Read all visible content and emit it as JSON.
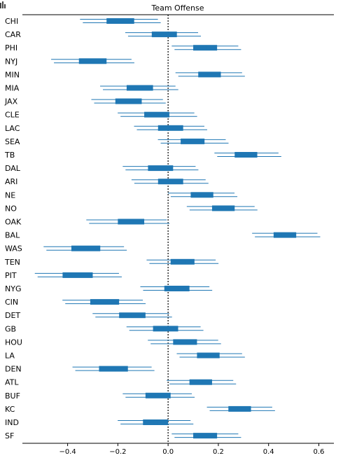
{
  "chart_data": {
    "type": "forest",
    "title": "Team Offense",
    "xlabel": "",
    "ylabel": "",
    "xlim": [
      -0.58,
      0.66
    ],
    "xticks": [
      -0.4,
      -0.2,
      0.0,
      0.2,
      0.4,
      0.6
    ],
    "xtick_labels": [
      "−0.4",
      "−0.2",
      "0.0",
      "0.2",
      "0.4",
      "0.6"
    ],
    "reference_line": 0.0,
    "marker_color": "#1f77b4",
    "rows": [
      {
        "team": "CHI",
        "median": -0.185,
        "iqr": [
          -0.245,
          -0.135
        ],
        "hdi": [
          -0.345,
          -0.035
        ]
      },
      {
        "team": "CAR",
        "median": -0.015,
        "iqr": [
          -0.065,
          0.035
        ],
        "hdi": [
          -0.165,
          0.125
        ]
      },
      {
        "team": "PHI",
        "median": 0.145,
        "iqr": [
          0.1,
          0.195
        ],
        "hdi": [
          0.02,
          0.285
        ]
      },
      {
        "team": "NYJ",
        "median": -0.3,
        "iqr": [
          -0.355,
          -0.245
        ],
        "hdi": [
          -0.46,
          -0.14
        ]
      },
      {
        "team": "MIN",
        "median": 0.165,
        "iqr": [
          0.12,
          0.21
        ],
        "hdi": [
          0.035,
          0.3
        ]
      },
      {
        "team": "MIA",
        "median": -0.11,
        "iqr": [
          -0.165,
          -0.06
        ],
        "hdi": [
          -0.265,
          0.035
        ]
      },
      {
        "team": "JAX",
        "median": -0.16,
        "iqr": [
          -0.21,
          -0.105
        ],
        "hdi": [
          -0.3,
          -0.015
        ]
      },
      {
        "team": "CLE",
        "median": -0.045,
        "iqr": [
          -0.095,
          0.005
        ],
        "hdi": [
          -0.195,
          0.11
        ]
      },
      {
        "team": "LAC",
        "median": 0.01,
        "iqr": [
          -0.04,
          0.06
        ],
        "hdi": [
          -0.13,
          0.15
        ]
      },
      {
        "team": "SEA",
        "median": 0.1,
        "iqr": [
          0.05,
          0.145
        ],
        "hdi": [
          -0.035,
          0.235
        ]
      },
      {
        "team": "TB",
        "median": 0.31,
        "iqr": [
          0.265,
          0.355
        ],
        "hdi": [
          0.19,
          0.445
        ]
      },
      {
        "team": "DAL",
        "median": -0.03,
        "iqr": [
          -0.08,
          0.02
        ],
        "hdi": [
          -0.175,
          0.115
        ]
      },
      {
        "team": "ARI",
        "median": 0.01,
        "iqr": [
          -0.04,
          0.06
        ],
        "hdi": [
          -0.14,
          0.155
        ]
      },
      {
        "team": "NE",
        "median": 0.135,
        "iqr": [
          0.09,
          0.18
        ],
        "hdi": [
          0.005,
          0.27
        ]
      },
      {
        "team": "NO",
        "median": 0.22,
        "iqr": [
          0.175,
          0.265
        ],
        "hdi": [
          0.08,
          0.35
        ]
      },
      {
        "team": "OAK",
        "median": -0.145,
        "iqr": [
          -0.2,
          -0.095
        ],
        "hdi": [
          -0.32,
          0.0
        ]
      },
      {
        "team": "BAL",
        "median": 0.46,
        "iqr": [
          0.42,
          0.51
        ],
        "hdi": [
          0.34,
          0.6
        ]
      },
      {
        "team": "WAS",
        "median": -0.325,
        "iqr": [
          -0.385,
          -0.27
        ],
        "hdi": [
          -0.49,
          -0.17
        ]
      },
      {
        "team": "TEN",
        "median": 0.06,
        "iqr": [
          0.01,
          0.105
        ],
        "hdi": [
          -0.08,
          0.195
        ]
      },
      {
        "team": "PIT",
        "median": -0.36,
        "iqr": [
          -0.42,
          -0.3
        ],
        "hdi": [
          -0.525,
          -0.19
        ]
      },
      {
        "team": "NYG",
        "median": 0.035,
        "iqr": [
          -0.015,
          0.085
        ],
        "hdi": [
          -0.105,
          0.17
        ]
      },
      {
        "team": "CIN",
        "median": -0.25,
        "iqr": [
          -0.31,
          -0.195
        ],
        "hdi": [
          -0.415,
          -0.095
        ]
      },
      {
        "team": "DET",
        "median": -0.14,
        "iqr": [
          -0.195,
          -0.09
        ],
        "hdi": [
          -0.295,
          0.01
        ]
      },
      {
        "team": "GB",
        "median": -0.01,
        "iqr": [
          -0.06,
          0.04
        ],
        "hdi": [
          -0.16,
          0.135
        ]
      },
      {
        "team": "HOU",
        "median": 0.065,
        "iqr": [
          0.02,
          0.115
        ],
        "hdi": [
          -0.075,
          0.205
        ]
      },
      {
        "team": "LA",
        "median": 0.16,
        "iqr": [
          0.115,
          0.205
        ],
        "hdi": [
          0.04,
          0.3
        ]
      },
      {
        "team": "DEN",
        "median": -0.215,
        "iqr": [
          -0.275,
          -0.16
        ],
        "hdi": [
          -0.375,
          -0.06
        ]
      },
      {
        "team": "ATL",
        "median": 0.13,
        "iqr": [
          0.085,
          0.175
        ],
        "hdi": [
          0.0,
          0.265
        ]
      },
      {
        "team": "BUF",
        "median": -0.04,
        "iqr": [
          -0.09,
          0.01
        ],
        "hdi": [
          -0.175,
          0.1
        ]
      },
      {
        "team": "KC",
        "median": 0.285,
        "iqr": [
          0.24,
          0.33
        ],
        "hdi": [
          0.16,
          0.42
        ]
      },
      {
        "team": "IND",
        "median": -0.05,
        "iqr": [
          -0.1,
          0.0
        ],
        "hdi": [
          -0.195,
          0.095
        ]
      },
      {
        "team": "SF",
        "median": 0.145,
        "iqr": [
          0.1,
          0.195
        ],
        "hdi": [
          0.02,
          0.285
        ]
      }
    ]
  }
}
